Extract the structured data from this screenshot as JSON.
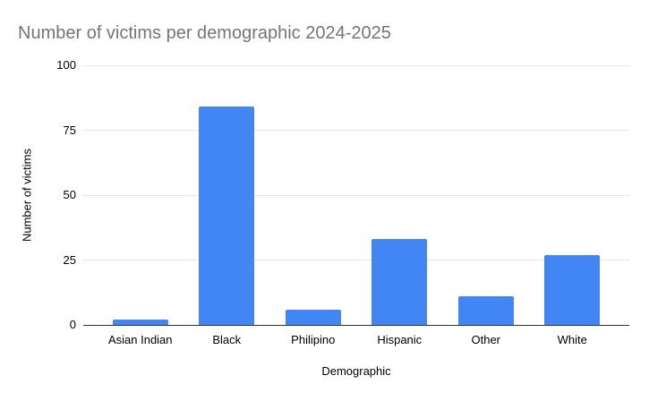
{
  "title": "Number of victims per demographic 2024-2025",
  "colors": {
    "background": "#ffffff",
    "bar": "#4285f4",
    "title_text": "#757575",
    "gridline": "#e6e6e6",
    "axis_line": "#333333",
    "label_text": "#000000"
  },
  "chart_data": {
    "type": "bar",
    "title": "Number of victims per demographic 2024-2025",
    "categories": [
      "Asian Indian",
      "Black",
      "Philipino",
      "Hispanic",
      "Other",
      "White"
    ],
    "values": [
      2,
      84,
      6,
      33,
      11,
      27
    ],
    "xlabel": "Demographic",
    "ylabel": "Number of victims",
    "ylim": [
      0,
      100
    ],
    "yticks": [
      0,
      25,
      50,
      75,
      100
    ],
    "grid": true,
    "legend": "none",
    "bar_color": "#4285f4"
  }
}
